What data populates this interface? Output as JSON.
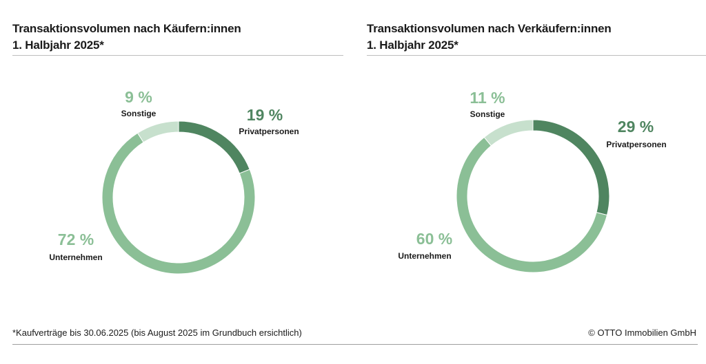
{
  "colors": {
    "privatpersonen": "#4f8560",
    "unternehmen": "#8bbf96",
    "sonstige": "#c7e0cd"
  },
  "chart_data": [
    {
      "type": "pie",
      "title_line1": "Transaktionsvolumen nach Käufern:innen",
      "title_line2": "1. Halbjahr 2025*",
      "slices": [
        {
          "key": "privatpersonen",
          "label": "Privatpersonen",
          "value": 19,
          "value_label": "19 %"
        },
        {
          "key": "unternehmen",
          "label": "Unternehmen",
          "value": 72,
          "value_label": "72 %"
        },
        {
          "key": "sonstige",
          "label": "Sonstige",
          "value": 9,
          "value_label": "9 %"
        }
      ]
    },
    {
      "type": "pie",
      "title_line1": "Transaktionsvolumen nach Verkäufern:innen",
      "title_line2": "1. Halbjahr 2025*",
      "slices": [
        {
          "key": "privatpersonen",
          "label": "Privatpersonen",
          "value": 29,
          "value_label": "29 %"
        },
        {
          "key": "unternehmen",
          "label": "Unternehmen",
          "value": 60,
          "value_label": "60 %"
        },
        {
          "key": "sonstige",
          "label": "Sonstige",
          "value": 11,
          "value_label": "11 %"
        }
      ]
    }
  ],
  "footer": {
    "note": "*Kaufverträge bis 30.06.2025 (bis August 2025 im Grundbuch ersichtlich)",
    "copyright": "© OTTO Immobilien GmbH"
  }
}
